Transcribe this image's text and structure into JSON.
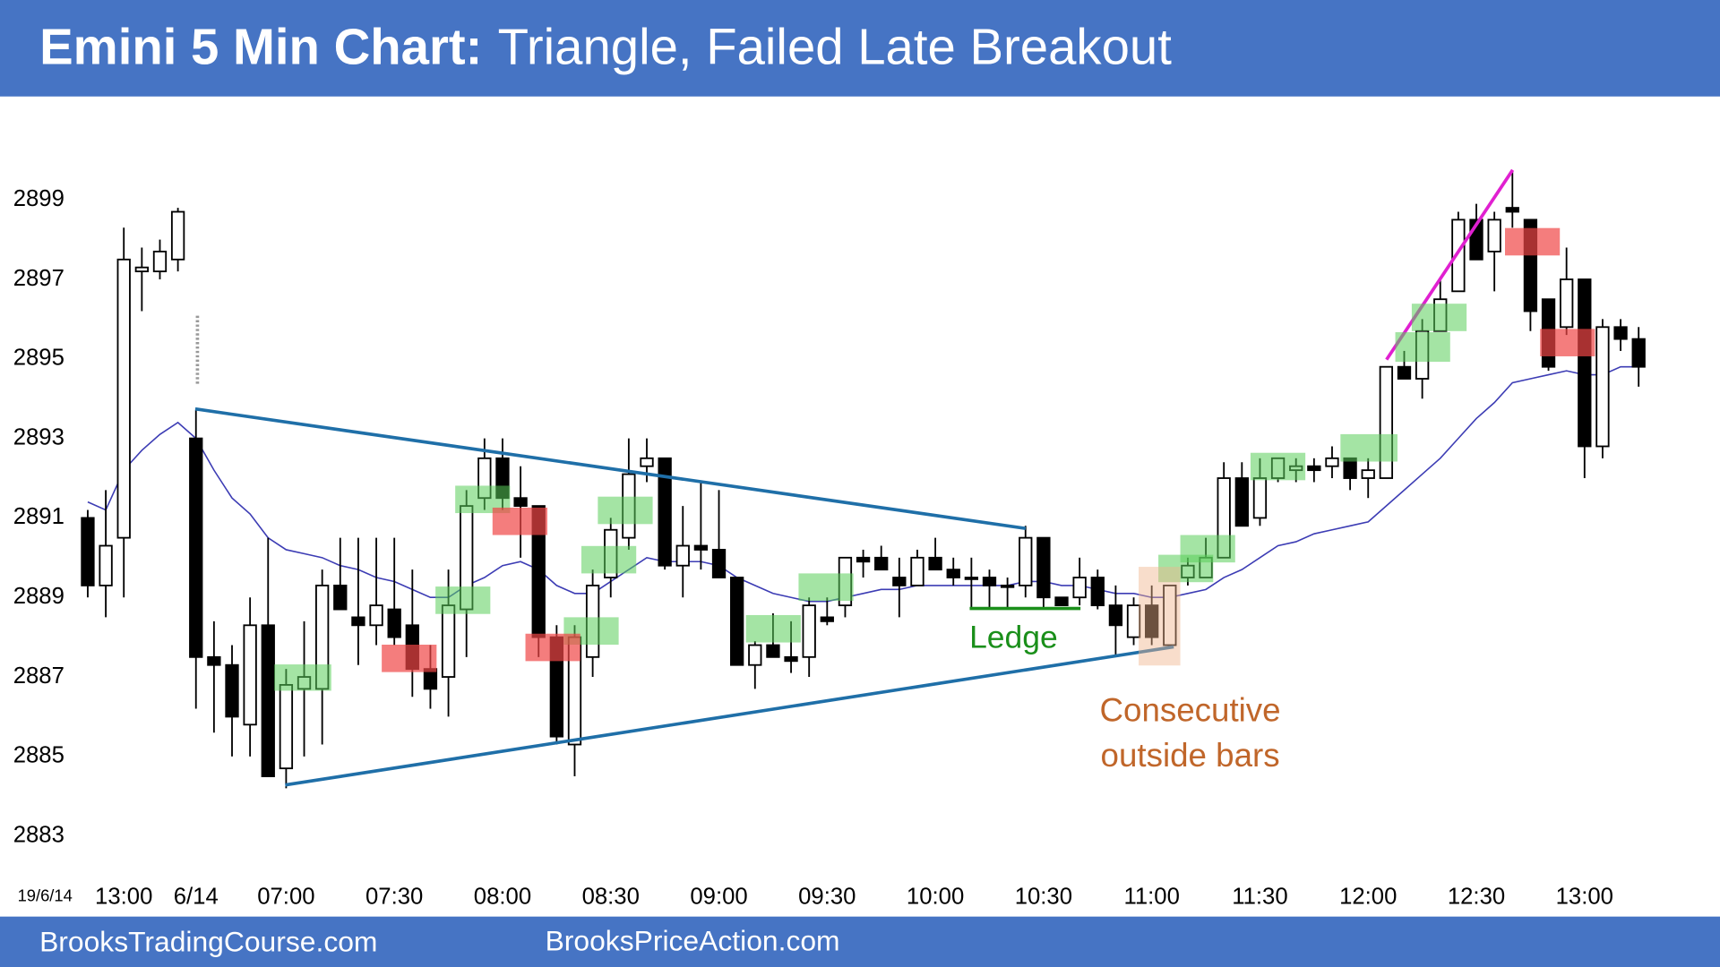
{
  "chart_data": {
    "type": "candlestick",
    "title": "Emini 5 Min Chart:",
    "subtitle": "Triangle, Failed Late Breakout",
    "date_label": "19/6/14",
    "categories": [
      null,
      null,
      "13:00",
      null,
      null,
      null,
      "6/14",
      null,
      null,
      null,
      null,
      "07:00",
      null,
      null,
      null,
      null,
      null,
      "07:30",
      null,
      null,
      null,
      null,
      null,
      "08:00",
      null,
      null,
      null,
      null,
      null,
      "08:30",
      null,
      null,
      null,
      null,
      null,
      "09:00",
      null,
      null,
      null,
      null,
      null,
      "09:30",
      null,
      null,
      null,
      null,
      null,
      "10:00",
      null,
      null,
      null,
      null,
      null,
      "10:30",
      null,
      null,
      null,
      null,
      null,
      "11:00",
      null,
      null,
      null,
      null,
      null,
      "11:30",
      null,
      null,
      null,
      null,
      null,
      "12:00",
      null,
      null,
      null,
      null,
      null,
      "12:30",
      null,
      null,
      null,
      null,
      null,
      "13:00",
      null,
      null,
      null
    ],
    "open": [
      2891.0,
      2889.3,
      2890.5,
      2897.2,
      2897.2,
      2897.5,
      2893.0,
      2887.5,
      2887.3,
      2885.8,
      2888.3,
      2884.7,
      2886.7,
      2886.7,
      2889.3,
      2888.5,
      2888.3,
      2888.7,
      2888.3,
      2887.2,
      2887.0,
      2888.7,
      2891.5,
      2892.5,
      2891.5,
      2891.3,
      2888.0,
      2885.3,
      2887.5,
      2889.5,
      2890.5,
      2892.3,
      2892.5,
      2889.8,
      2890.3,
      2890.2,
      2889.5,
      2887.3,
      2887.8,
      2887.5,
      2887.5,
      2888.5,
      2888.8,
      2890.0,
      2890.0,
      2889.5,
      2889.3,
      2890.0,
      2889.7,
      2889.5,
      2889.5,
      2889.3,
      2889.3,
      2890.5,
      2889.0,
      2889.0,
      2889.5,
      2888.8,
      2888.0,
      2888.8,
      2887.8,
      2889.5,
      2889.5,
      2890.0,
      2892.0,
      2891.0,
      2892.0,
      2892.2,
      2892.3,
      2892.3,
      2892.5,
      2892.0,
      2892.0,
      2894.8,
      2894.5,
      2895.7,
      2896.7,
      2898.5,
      2897.7,
      2898.8,
      2898.5,
      2896.5,
      2895.8,
      2897.0,
      2892.8,
      2895.8,
      2895.5
    ],
    "high": [
      2891.2,
      2891.7,
      2898.3,
      2897.8,
      2898.0,
      2898.8,
      2893.7,
      2888.4,
      2887.8,
      2889.0,
      2890.5,
      2887.2,
      2888.4,
      2889.7,
      2890.5,
      2890.5,
      2890.5,
      2890.5,
      2889.7,
      2887.8,
      2889.7,
      2891.7,
      2893.0,
      2893.0,
      2892.3,
      2891.3,
      2888.3,
      2888.3,
      2889.7,
      2891.0,
      2893.0,
      2893.0,
      2892.5,
      2891.3,
      2891.9,
      2891.7,
      2889.5,
      2887.9,
      2888.6,
      2888.4,
      2889.0,
      2889.0,
      2890.0,
      2890.2,
      2890.3,
      2890.0,
      2890.2,
      2890.5,
      2890.0,
      2890.0,
      2889.7,
      2889.5,
      2890.8,
      2890.5,
      2889.0,
      2890.0,
      2889.7,
      2889.3,
      2889.0,
      2889.3,
      2889.3,
      2890.0,
      2890.5,
      2892.4,
      2892.4,
      2892.5,
      2892.5,
      2892.5,
      2892.5,
      2892.8,
      2892.5,
      2892.5,
      2894.8,
      2895.2,
      2896.0,
      2897.0,
      2898.7,
      2898.9,
      2898.7,
      2899.7,
      2898.5,
      2896.5,
      2897.8,
      2897.0,
      2896.0,
      2896.0,
      2895.8
    ],
    "low": [
      2889.0,
      2888.5,
      2889.0,
      2896.2,
      2897.0,
      2897.2,
      2886.2,
      2885.6,
      2885.0,
      2885.0,
      2884.5,
      2884.2,
      2885.0,
      2885.3,
      2888.7,
      2887.3,
      2887.8,
      2887.8,
      2886.5,
      2886.2,
      2886.0,
      2887.5,
      2891.2,
      2891.2,
      2890.0,
      2887.5,
      2885.3,
      2884.5,
      2887.0,
      2889.0,
      2890.2,
      2891.9,
      2889.7,
      2889.0,
      2889.7,
      2889.5,
      2887.3,
      2886.7,
      2887.5,
      2887.1,
      2887.0,
      2888.3,
      2888.5,
      2889.5,
      2889.7,
      2888.5,
      2889.3,
      2889.7,
      2889.3,
      2888.7,
      2888.7,
      2888.7,
      2889.0,
      2888.7,
      2888.8,
      2888.8,
      2888.7,
      2887.5,
      2887.8,
      2887.8,
      2887.8,
      2889.3,
      2889.5,
      2890.0,
      2890.8,
      2890.8,
      2891.9,
      2891.9,
      2891.9,
      2892.0,
      2891.7,
      2891.5,
      2892.0,
      2894.5,
      2894.0,
      2895.7,
      2896.7,
      2897.5,
      2896.7,
      2898.3,
      2895.7,
      2894.7,
      2895.6,
      2892.0,
      2892.5,
      2895.2,
      2894.3
    ],
    "close": [
      2889.3,
      2890.3,
      2897.5,
      2897.3,
      2897.7,
      2898.7,
      2887.5,
      2887.3,
      2886.0,
      2888.3,
      2884.5,
      2886.8,
      2887.0,
      2889.3,
      2888.7,
      2888.3,
      2888.8,
      2888.0,
      2887.2,
      2886.7,
      2888.8,
      2891.3,
      2892.5,
      2891.5,
      2891.3,
      2888.0,
      2885.5,
      2888.0,
      2889.3,
      2890.7,
      2892.1,
      2892.5,
      2889.8,
      2890.3,
      2890.2,
      2889.5,
      2887.3,
      2887.8,
      2887.5,
      2887.4,
      2888.8,
      2888.4,
      2890.0,
      2889.9,
      2889.7,
      2889.3,
      2890.0,
      2889.7,
      2889.5,
      2889.5,
      2889.3,
      2889.3,
      2890.5,
      2889.0,
      2888.8,
      2889.5,
      2888.8,
      2888.3,
      2888.8,
      2888.0,
      2889.3,
      2889.8,
      2890.0,
      2892.0,
      2890.8,
      2892.0,
      2892.5,
      2892.3,
      2892.2,
      2892.5,
      2892.0,
      2892.2,
      2894.8,
      2894.5,
      2895.7,
      2896.5,
      2898.5,
      2897.5,
      2898.5,
      2898.7,
      2896.2,
      2894.8,
      2897.0,
      2892.8,
      2895.8,
      2895.5,
      2894.8
    ],
    "up_color": "#ffffff",
    "down_color": "#000000",
    "ema": {
      "color": "#3c3cb4",
      "values": [
        2891.4,
        2891.2,
        2892.2,
        2892.7,
        2893.1,
        2893.4,
        2893.0,
        2892.2,
        2891.5,
        2891.1,
        2890.5,
        2890.2,
        2890.1,
        2890.0,
        2889.8,
        2889.7,
        2889.5,
        2889.4,
        2889.2,
        2889.0,
        2889.0,
        2889.3,
        2889.5,
        2889.8,
        2889.9,
        2889.7,
        2889.3,
        2889.1,
        2889.1,
        2889.4,
        2889.7,
        2890.0,
        2889.9,
        2889.9,
        2889.9,
        2889.8,
        2889.5,
        2889.3,
        2889.1,
        2889.0,
        2888.9,
        2888.9,
        2889.0,
        2889.1,
        2889.2,
        2889.2,
        2889.3,
        2889.3,
        2889.3,
        2889.3,
        2889.3,
        2889.3,
        2889.4,
        2889.4,
        2889.3,
        2889.3,
        2889.2,
        2889.1,
        2889.1,
        2889.0,
        2889.0,
        2889.1,
        2889.2,
        2889.5,
        2889.7,
        2890.0,
        2890.3,
        2890.4,
        2890.6,
        2890.7,
        2890.8,
        2890.9,
        2891.3,
        2891.7,
        2892.1,
        2892.5,
        2893.0,
        2893.5,
        2893.9,
        2894.4,
        2894.5,
        2894.6,
        2894.7,
        2894.6,
        2894.6,
        2894.8,
        2894.8
      ]
    },
    "ylim": [
      2881,
      2901.6
    ],
    "yticks": [
      2883,
      2885,
      2887,
      2889,
      2891,
      2893,
      2895,
      2897,
      2899
    ],
    "annotations": {
      "ledge": "Ledge",
      "outside_bars": [
        "Consecutive",
        "outside bars"
      ]
    }
  },
  "footer": {
    "left": "BrooksTradingCourse.com",
    "right": "BrooksPriceAction.com"
  }
}
